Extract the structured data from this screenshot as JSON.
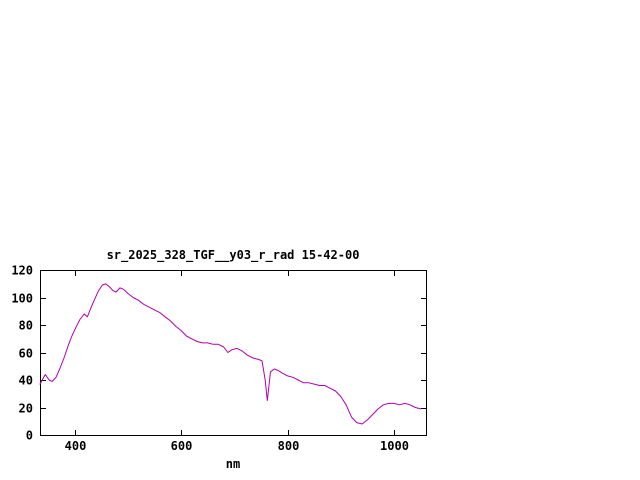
{
  "page": {
    "background": "#ffffff"
  },
  "chart_data": {
    "type": "line",
    "title": "sr_2025_328_TGF__y03_r_rad 15-42-00",
    "xlabel": "nm",
    "ylabel": "",
    "xlim": [
      335,
      1060
    ],
    "ylim": [
      0,
      120
    ],
    "xticks": [
      400,
      600,
      800,
      1000
    ],
    "yticks": [
      0,
      20,
      40,
      60,
      80,
      100,
      120
    ],
    "grid": false,
    "legend": "none",
    "line_color": "#b000b0",
    "axis_color": "#000000",
    "x": [
      335,
      345,
      352,
      358,
      365,
      372,
      380,
      388,
      395,
      402,
      410,
      418,
      424,
      430,
      438,
      445,
      452,
      458,
      465,
      472,
      478,
      485,
      492,
      500,
      510,
      520,
      530,
      540,
      550,
      560,
      570,
      580,
      590,
      600,
      610,
      620,
      630,
      640,
      650,
      660,
      670,
      680,
      688,
      695,
      705,
      715,
      725,
      735,
      745,
      752,
      758,
      762,
      768,
      775,
      782,
      790,
      800,
      810,
      820,
      830,
      840,
      850,
      860,
      870,
      880,
      890,
      900,
      910,
      920,
      930,
      940,
      950,
      960,
      970,
      980,
      990,
      1000,
      1010,
      1020,
      1030,
      1040,
      1050
    ],
    "y": [
      37,
      44,
      40,
      39,
      42,
      48,
      56,
      65,
      72,
      78,
      84,
      88,
      86,
      92,
      99,
      105,
      109,
      110,
      108,
      105,
      104,
      107,
      106,
      103,
      100,
      98,
      95,
      93,
      91,
      89,
      86,
      83,
      79,
      76,
      72,
      70,
      68,
      67,
      67,
      66,
      66,
      64,
      60,
      62,
      63,
      61,
      58,
      56,
      55,
      54,
      40,
      25,
      46,
      48,
      47,
      45,
      43,
      42,
      40,
      38,
      38,
      37,
      36,
      36,
      34,
      32,
      28,
      22,
      13,
      9,
      8,
      11,
      15,
      19,
      22,
      23,
      23,
      22,
      23,
      22,
      20,
      19
    ]
  }
}
